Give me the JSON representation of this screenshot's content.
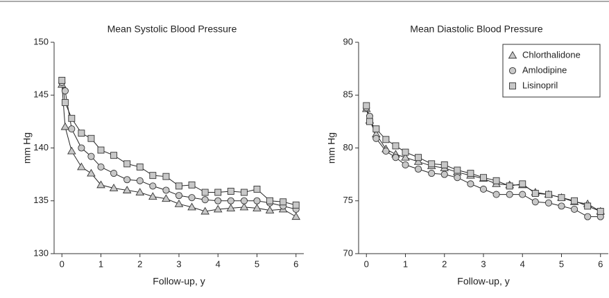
{
  "chart_data": [
    {
      "type": "line",
      "title": "Mean Systolic Blood Pressure",
      "xlabel": "Follow-up, y",
      "ylabel": "mm Hg",
      "x": [
        0,
        0.083,
        0.25,
        0.5,
        0.75,
        1,
        1.33,
        1.67,
        2,
        2.33,
        2.67,
        3,
        3.33,
        3.67,
        4,
        4.33,
        4.67,
        5,
        5.33,
        5.67,
        6
      ],
      "xlim": [
        -0.2,
        6.2
      ],
      "xticks": [
        0,
        1,
        2,
        3,
        4,
        5,
        6
      ],
      "ylim": [
        130,
        150
      ],
      "yticks": [
        130,
        135,
        140,
        145,
        150
      ],
      "series": [
        {
          "marker": "triangle",
          "color": "#c8c8c8",
          "values": [
            146.0,
            142.0,
            139.7,
            138.2,
            137.6,
            136.5,
            136.2,
            136.0,
            135.8,
            135.4,
            135.2,
            134.7,
            134.4,
            134.0,
            134.2,
            134.3,
            134.4,
            134.3,
            134.1,
            134.2,
            133.5
          ]
        },
        {
          "marker": "circle",
          "color": "#c8c8c8",
          "values": [
            146.2,
            145.4,
            141.8,
            140.0,
            139.2,
            138.2,
            137.6,
            137.0,
            136.9,
            136.4,
            136.0,
            135.5,
            135.3,
            135.1,
            135.0,
            135.0,
            135.0,
            135.0,
            134.8,
            134.5,
            134.2
          ]
        },
        {
          "marker": "square",
          "color": "#c8c8c8",
          "values": [
            146.4,
            144.3,
            142.8,
            141.4,
            140.9,
            139.8,
            139.3,
            138.5,
            138.2,
            137.4,
            137.3,
            136.4,
            136.5,
            135.8,
            135.8,
            135.9,
            135.8,
            136.1,
            135.0,
            134.9,
            134.6
          ]
        }
      ]
    },
    {
      "type": "line",
      "title": "Mean Diastolic Blood Pressure",
      "xlabel": "Follow-up, y",
      "ylabel": "mm Hg",
      "legend": "upper right",
      "x": [
        0,
        0.083,
        0.25,
        0.5,
        0.75,
        1,
        1.33,
        1.67,
        2,
        2.33,
        2.67,
        3,
        3.33,
        3.67,
        4,
        4.33,
        4.67,
        5,
        5.33,
        5.67,
        6
      ],
      "xlim": [
        -0.2,
        6.2
      ],
      "xticks": [
        0,
        1,
        2,
        3,
        4,
        5,
        6
      ],
      "ylim": [
        70,
        90
      ],
      "yticks": [
        70,
        75,
        80,
        85,
        90
      ],
      "series": [
        {
          "name": "Chlorthalidone",
          "marker": "triangle",
          "color": "#c8c8c8",
          "values": [
            83.7,
            82.6,
            81.3,
            79.9,
            79.4,
            79.1,
            78.7,
            78.3,
            78.1,
            77.7,
            77.4,
            77.1,
            76.6,
            76.5,
            76.5,
            75.8,
            75.6,
            75.3,
            74.9,
            74.7,
            74.0
          ]
        },
        {
          "name": "Amlodipine",
          "marker": "circle",
          "color": "#c8c8c8",
          "values": [
            83.8,
            83.0,
            80.9,
            79.7,
            79.1,
            78.4,
            78.0,
            77.6,
            77.5,
            77.2,
            76.6,
            76.1,
            75.6,
            75.6,
            75.6,
            74.9,
            74.8,
            74.5,
            74.2,
            73.5,
            73.5
          ]
        },
        {
          "name": "Lisinopril",
          "marker": "square",
          "color": "#c8c8c8",
          "values": [
            84.0,
            82.5,
            81.8,
            80.8,
            80.2,
            79.6,
            79.1,
            78.5,
            78.4,
            77.9,
            77.6,
            77.2,
            76.9,
            76.4,
            76.6,
            75.7,
            75.6,
            75.3,
            75.0,
            74.5,
            74.0
          ]
        }
      ]
    }
  ]
}
